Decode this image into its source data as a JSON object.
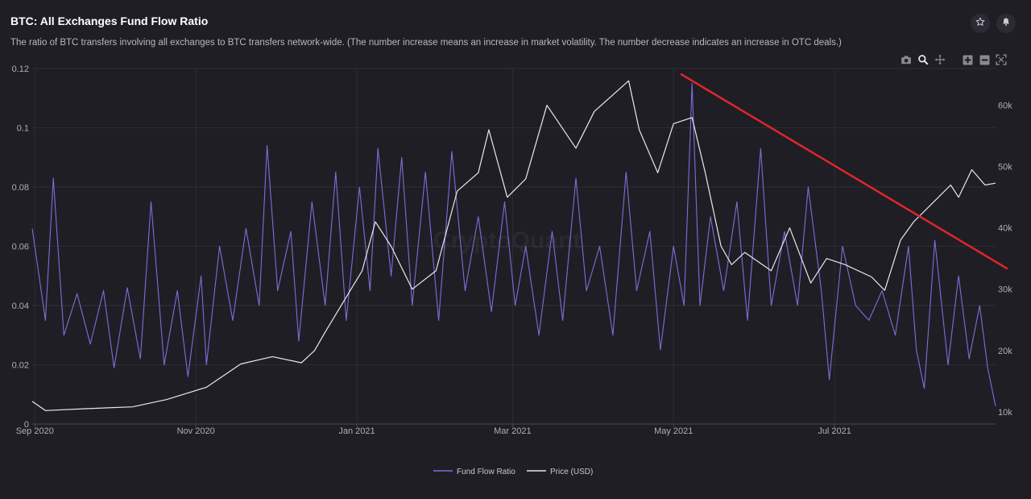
{
  "header": {
    "title": "BTC: All Exchanges Fund Flow Ratio",
    "subtitle": "The ratio of BTC transfers involving all exchanges to BTC transfers network-wide. (The number increase means an increase in market volatility. The number decrease indicates an increase in OTC deals.)"
  },
  "watermark": "CryptoQuant",
  "icons": {
    "favorite": "star-icon",
    "alert": "bell-icon",
    "toolbar": [
      "camera-icon",
      "zoom-icon",
      "pan-icon",
      "zoom-in-icon",
      "zoom-out-icon",
      "autoscale-icon"
    ]
  },
  "colors": {
    "background": "#1f1e25",
    "fund_flow_ratio": "#7b6fd8",
    "price": "#e8e8ec",
    "trend_line": "#e0262a",
    "grid": "#2e2d35"
  },
  "chart_data": {
    "type": "line",
    "title": "BTC: All Exchanges Fund Flow Ratio",
    "x_ticks": [
      "Sep 2020",
      "Nov 2020",
      "Jan 2021",
      "Mar 2021",
      "May 2021",
      "Jul 2021"
    ],
    "y_left": {
      "ticks": [
        "0",
        "0.02",
        "0.04",
        "0.06",
        "0.08",
        "0.1",
        "0.12"
      ],
      "range": [
        0,
        0.12
      ]
    },
    "y_right": {
      "ticks": [
        "10k",
        "20k",
        "30k",
        "40k",
        "50k",
        "60k"
      ],
      "range": [
        8000,
        66000
      ]
    },
    "x_range": [
      "2020-08-31",
      "2021-08-31"
    ],
    "grid": true,
    "legend_position": "bottom-center",
    "legend": [
      "Fund Flow Ratio",
      "Price (USD)"
    ],
    "series": [
      {
        "name": "Fund Flow Ratio",
        "axis": "left",
        "points": [
          [
            "2020-08-31",
            0.066
          ],
          [
            "2020-09-05",
            0.035
          ],
          [
            "2020-09-08",
            0.083
          ],
          [
            "2020-09-12",
            0.03
          ],
          [
            "2020-09-17",
            0.044
          ],
          [
            "2020-09-22",
            0.027
          ],
          [
            "2020-09-27",
            0.045
          ],
          [
            "2020-10-01",
            0.019
          ],
          [
            "2020-10-06",
            0.046
          ],
          [
            "2020-10-11",
            0.022
          ],
          [
            "2020-10-15",
            0.075
          ],
          [
            "2020-10-20",
            0.02
          ],
          [
            "2020-10-25",
            0.045
          ],
          [
            "2020-10-29",
            0.016
          ],
          [
            "2020-11-03",
            0.05
          ],
          [
            "2020-11-05",
            0.02
          ],
          [
            "2020-11-10",
            0.06
          ],
          [
            "2020-11-15",
            0.035
          ],
          [
            "2020-11-20",
            0.066
          ],
          [
            "2020-11-25",
            0.04
          ],
          [
            "2020-11-28",
            0.094
          ],
          [
            "2020-12-02",
            0.045
          ],
          [
            "2020-12-07",
            0.065
          ],
          [
            "2020-12-10",
            0.028
          ],
          [
            "2020-12-15",
            0.075
          ],
          [
            "2020-12-20",
            0.04
          ],
          [
            "2020-12-24",
            0.085
          ],
          [
            "2020-12-28",
            0.035
          ],
          [
            "2021-01-02",
            0.08
          ],
          [
            "2021-01-06",
            0.045
          ],
          [
            "2021-01-09",
            0.093
          ],
          [
            "2021-01-14",
            0.05
          ],
          [
            "2021-01-18",
            0.09
          ],
          [
            "2021-01-22",
            0.04
          ],
          [
            "2021-01-27",
            0.085
          ],
          [
            "2021-02-01",
            0.035
          ],
          [
            "2021-02-06",
            0.092
          ],
          [
            "2021-02-11",
            0.045
          ],
          [
            "2021-02-16",
            0.07
          ],
          [
            "2021-02-21",
            0.038
          ],
          [
            "2021-02-26",
            0.075
          ],
          [
            "2021-03-02",
            0.04
          ],
          [
            "2021-03-06",
            0.06
          ],
          [
            "2021-03-11",
            0.03
          ],
          [
            "2021-03-16",
            0.065
          ],
          [
            "2021-03-20",
            0.035
          ],
          [
            "2021-03-25",
            0.083
          ],
          [
            "2021-03-29",
            0.045
          ],
          [
            "2021-04-03",
            0.06
          ],
          [
            "2021-04-08",
            0.03
          ],
          [
            "2021-04-13",
            0.085
          ],
          [
            "2021-04-17",
            0.045
          ],
          [
            "2021-04-22",
            0.065
          ],
          [
            "2021-04-26",
            0.025
          ],
          [
            "2021-05-01",
            0.06
          ],
          [
            "2021-05-05",
            0.04
          ],
          [
            "2021-05-08",
            0.115
          ],
          [
            "2021-05-11",
            0.04
          ],
          [
            "2021-05-15",
            0.07
          ],
          [
            "2021-05-20",
            0.045
          ],
          [
            "2021-05-25",
            0.075
          ],
          [
            "2021-05-29",
            0.035
          ],
          [
            "2021-06-03",
            0.093
          ],
          [
            "2021-06-07",
            0.04
          ],
          [
            "2021-06-12",
            0.065
          ],
          [
            "2021-06-17",
            0.04
          ],
          [
            "2021-06-21",
            0.08
          ],
          [
            "2021-06-26",
            0.045
          ],
          [
            "2021-06-29",
            0.015
          ],
          [
            "2021-07-04",
            0.06
          ],
          [
            "2021-07-09",
            0.04
          ],
          [
            "2021-07-14",
            0.035
          ],
          [
            "2021-07-19",
            0.045
          ],
          [
            "2021-07-24",
            0.03
          ],
          [
            "2021-07-29",
            0.06
          ],
          [
            "2021-08-01",
            0.025
          ],
          [
            "2021-08-04",
            0.012
          ],
          [
            "2021-08-08",
            0.062
          ],
          [
            "2021-08-13",
            0.02
          ],
          [
            "2021-08-17",
            0.05
          ],
          [
            "2021-08-21",
            0.022
          ],
          [
            "2021-08-25",
            0.04
          ],
          [
            "2021-08-28",
            0.019
          ],
          [
            "2021-08-31",
            0.006
          ]
        ]
      },
      {
        "name": "Price (USD)",
        "axis": "right",
        "points": [
          [
            "2020-08-31",
            11700
          ],
          [
            "2020-09-05",
            10200
          ],
          [
            "2020-09-20",
            10500
          ],
          [
            "2020-10-08",
            10800
          ],
          [
            "2020-10-21",
            12000
          ],
          [
            "2020-11-05",
            14000
          ],
          [
            "2020-11-18",
            17800
          ],
          [
            "2020-11-30",
            19000
          ],
          [
            "2020-12-11",
            18000
          ],
          [
            "2020-12-16",
            20000
          ],
          [
            "2020-12-20",
            23000
          ],
          [
            "2021-01-03",
            33000
          ],
          [
            "2021-01-08",
            41000
          ],
          [
            "2021-01-14",
            37000
          ],
          [
            "2021-01-22",
            30000
          ],
          [
            "2021-01-31",
            33000
          ],
          [
            "2021-02-08",
            46000
          ],
          [
            "2021-02-16",
            49000
          ],
          [
            "2021-02-20",
            56000
          ],
          [
            "2021-02-27",
            45000
          ],
          [
            "2021-03-06",
            48000
          ],
          [
            "2021-03-14",
            60000
          ],
          [
            "2021-03-25",
            53000
          ],
          [
            "2021-04-01",
            59000
          ],
          [
            "2021-04-14",
            64000
          ],
          [
            "2021-04-18",
            56000
          ],
          [
            "2021-04-25",
            49000
          ],
          [
            "2021-05-01",
            57000
          ],
          [
            "2021-05-08",
            58000
          ],
          [
            "2021-05-13",
            49000
          ],
          [
            "2021-05-19",
            37000
          ],
          [
            "2021-05-23",
            34000
          ],
          [
            "2021-05-28",
            36000
          ],
          [
            "2021-06-07",
            33000
          ],
          [
            "2021-06-14",
            40000
          ],
          [
            "2021-06-22",
            31000
          ],
          [
            "2021-06-28",
            35000
          ],
          [
            "2021-07-05",
            34000
          ],
          [
            "2021-07-15",
            32000
          ],
          [
            "2021-07-20",
            29800
          ],
          [
            "2021-07-26",
            38000
          ],
          [
            "2021-07-31",
            41000
          ],
          [
            "2021-08-07",
            44000
          ],
          [
            "2021-08-14",
            47000
          ],
          [
            "2021-08-17",
            45000
          ],
          [
            "2021-08-22",
            49500
          ],
          [
            "2021-08-27",
            47000
          ],
          [
            "2021-08-31",
            47300
          ]
        ]
      }
    ],
    "annotations": [
      {
        "type": "trend-line",
        "color": "#e0262a",
        "from": [
          "2021-05-04",
          0.118
        ],
        "to": [
          "2021-08-31",
          0.052
        ]
      }
    ]
  }
}
